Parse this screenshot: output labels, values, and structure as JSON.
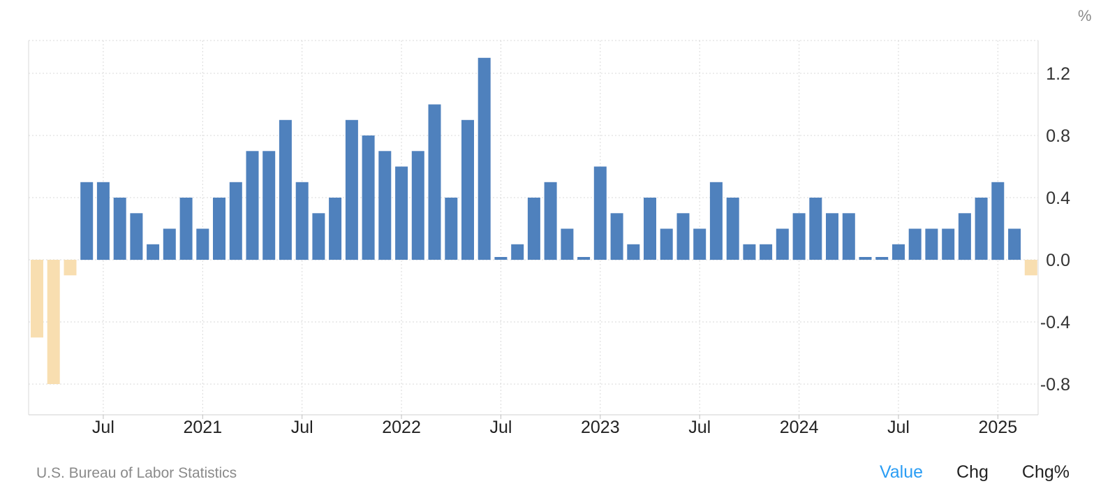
{
  "chart_data": {
    "type": "bar",
    "unit": "%",
    "ylim": [
      -1.0,
      1.4
    ],
    "yticks": [
      1.2,
      0.8,
      0.4,
      0.0,
      -0.4,
      -0.8
    ],
    "ytick_labels": [
      "1.2",
      "0.8",
      "0.4",
      "0.0",
      "-0.4",
      "-0.8"
    ],
    "xtick_labels": [
      "Jul",
      "2021",
      "Jul",
      "2022",
      "Jul",
      "2023",
      "Jul",
      "2024",
      "Jul",
      "2025"
    ],
    "xtick_months": [
      "2020-07",
      "2021-01",
      "2021-07",
      "2022-01",
      "2022-07",
      "2023-01",
      "2023-07",
      "2024-01",
      "2024-07",
      "2025-01"
    ],
    "grid": true,
    "colors": {
      "positive": "#4f81bd",
      "negative": "#f8deb0",
      "grid": "#d9d9d9",
      "axis_text": "#333333"
    },
    "categories": [
      "2020-03",
      "2020-04",
      "2020-05",
      "2020-06",
      "2020-07",
      "2020-08",
      "2020-09",
      "2020-10",
      "2020-11",
      "2020-12",
      "2021-01",
      "2021-02",
      "2021-03",
      "2021-04",
      "2021-05",
      "2021-06",
      "2021-07",
      "2021-08",
      "2021-09",
      "2021-10",
      "2021-11",
      "2021-12",
      "2022-01",
      "2022-02",
      "2022-03",
      "2022-04",
      "2022-05",
      "2022-06",
      "2022-07",
      "2022-08",
      "2022-09",
      "2022-10",
      "2022-11",
      "2022-12",
      "2023-01",
      "2023-02",
      "2023-03",
      "2023-04",
      "2023-05",
      "2023-06",
      "2023-07",
      "2023-08",
      "2023-09",
      "2023-10",
      "2023-11",
      "2023-12",
      "2024-01",
      "2024-02",
      "2024-03",
      "2024-04",
      "2024-05",
      "2024-06",
      "2024-07",
      "2024-08",
      "2024-09",
      "2024-10",
      "2024-11",
      "2024-12",
      "2025-01",
      "2025-02",
      "2025-03"
    ],
    "values": [
      -0.5,
      -0.8,
      -0.1,
      0.5,
      0.5,
      0.4,
      0.3,
      0.1,
      0.2,
      0.4,
      0.2,
      0.4,
      0.5,
      0.7,
      0.7,
      0.9,
      0.5,
      0.3,
      0.4,
      0.9,
      0.8,
      0.7,
      0.6,
      0.7,
      1.0,
      0.4,
      0.9,
      1.3,
      0.0,
      0.1,
      0.4,
      0.5,
      0.2,
      0.0,
      0.6,
      0.3,
      0.1,
      0.4,
      0.2,
      0.3,
      0.2,
      0.5,
      0.4,
      0.1,
      0.1,
      0.2,
      0.3,
      0.4,
      0.3,
      0.3,
      0.0,
      0.0,
      0.1,
      0.2,
      0.2,
      0.2,
      0.3,
      0.4,
      0.5,
      0.2,
      -0.1
    ]
  },
  "unit_label": "%",
  "source": "U.S. Bureau of Labor Statistics",
  "tabs": [
    {
      "label": "Value",
      "active": true
    },
    {
      "label": "Chg",
      "active": false
    },
    {
      "label": "Chg%",
      "active": false
    }
  ]
}
